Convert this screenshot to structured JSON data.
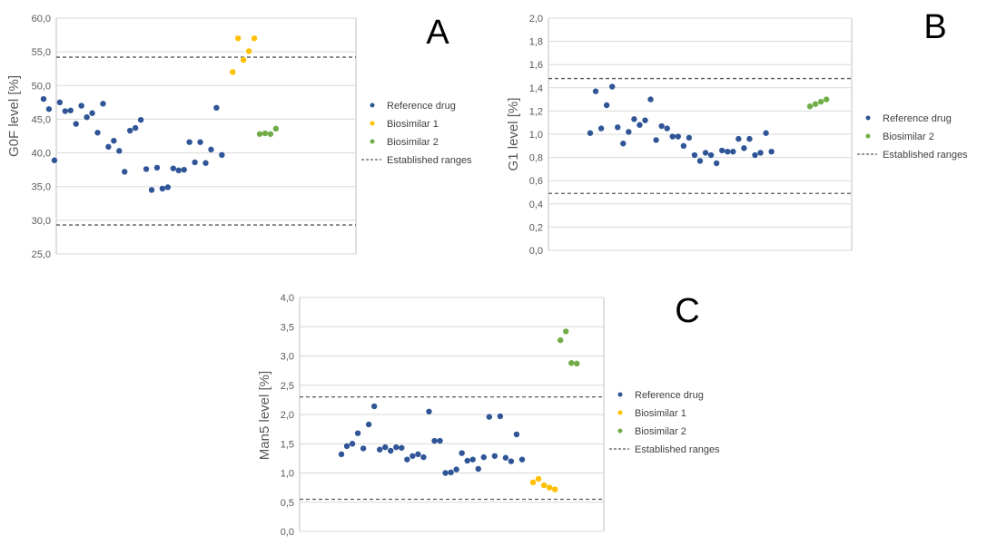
{
  "colors": {
    "reference": "#2F5597",
    "biosimilar1": "#FFC000",
    "biosimilar2": "#70AD47",
    "range": "#595959",
    "grid": "#D9D9D9",
    "axis": "#BFBFBF"
  },
  "chart_data": [
    {
      "panel": "A",
      "type": "scatter",
      "ylabel": "G0F level [%]",
      "ylim": [
        25,
        60
      ],
      "yticks": [
        "25,0",
        "30,0",
        "35,0",
        "40,0",
        "45,0",
        "50,0",
        "55,0",
        "60,0"
      ],
      "grid": true,
      "legend": [
        "Reference drug",
        "Biosimilar 1",
        "Biosimilar 2",
        "Established ranges"
      ],
      "established_range": [
        29.3,
        54.2
      ],
      "series": [
        {
          "name": "Reference drug",
          "x": [
            1,
            2,
            3,
            4,
            5,
            6,
            7,
            8,
            9,
            10,
            11,
            12,
            13,
            14,
            15,
            16,
            17,
            18,
            19,
            20,
            21,
            22,
            23,
            24,
            25,
            26,
            27,
            28,
            29,
            30,
            31,
            32,
            33,
            34,
            35,
            36
          ],
          "values": [
            48.0,
            46.5,
            38.9,
            47.5,
            46.2,
            46.3,
            44.3,
            47.0,
            45.3,
            45.9,
            43.0,
            47.3,
            40.9,
            41.8,
            40.3,
            37.2,
            43.3,
            43.7,
            44.9,
            37.6,
            34.5,
            37.8,
            34.7,
            34.9,
            37.7,
            37.4,
            37.5,
            41.6,
            38.6,
            41.6,
            38.5,
            40.5,
            46.7,
            39.7,
            null,
            null
          ]
        },
        {
          "name": "Biosimilar 1",
          "x": [
            36,
            37,
            38,
            39,
            40
          ],
          "values": [
            52.0,
            57.0,
            53.8,
            55.1,
            57.0
          ]
        },
        {
          "name": "Biosimilar 2",
          "x": [
            41,
            42,
            43,
            44
          ],
          "values": [
            42.8,
            42.9,
            42.8,
            43.6
          ]
        }
      ]
    },
    {
      "panel": "B",
      "type": "scatter",
      "ylabel": "G1 level [%]",
      "ylim": [
        0,
        2
      ],
      "yticks": [
        "0,0",
        "0,2",
        "0,4",
        "0,6",
        "0,8",
        "1,0",
        "1,2",
        "1,4",
        "1,6",
        "1,8",
        "2,0"
      ],
      "grid": true,
      "legend": [
        "Reference drug",
        "Biosimilar 2",
        "Established ranges"
      ],
      "established_range": [
        0.49,
        1.48
      ],
      "series": [
        {
          "name": "Reference drug",
          "x": [
            1,
            2,
            3,
            4,
            5,
            6,
            7,
            8,
            9,
            10,
            11,
            12,
            13,
            14,
            15,
            16,
            17,
            18,
            19,
            20,
            21,
            22,
            23,
            24,
            25,
            26,
            27,
            28,
            29,
            30,
            31,
            32,
            33,
            34,
            35,
            36
          ],
          "values": [
            1.01,
            1.37,
            1.05,
            1.25,
            1.41,
            1.06,
            0.92,
            1.02,
            1.13,
            1.08,
            1.12,
            1.3,
            0.95,
            1.07,
            1.05,
            0.98,
            0.98,
            0.9,
            0.97,
            0.82,
            0.77,
            0.84,
            0.82,
            0.75,
            0.86,
            0.85,
            0.85,
            0.96,
            0.88,
            0.96,
            0.82,
            0.84,
            1.01,
            0.85,
            null,
            null
          ]
        },
        {
          "name": "Biosimilar 2",
          "x": [
            41,
            42,
            43,
            44
          ],
          "values": [
            1.24,
            1.26,
            1.28,
            1.3
          ]
        }
      ]
    },
    {
      "panel": "C",
      "type": "scatter",
      "ylabel": "Man5 level [%]",
      "ylim": [
        0,
        4
      ],
      "yticks": [
        "0,0",
        "0,5",
        "1,0",
        "1,5",
        "2,0",
        "2,5",
        "3,0",
        "3,5",
        "4,0"
      ],
      "grid": true,
      "legend": [
        "Reference drug",
        "Biosimilar 1",
        "Biosimilar 2",
        "Established ranges"
      ],
      "established_range": [
        0.55,
        2.3
      ],
      "series": [
        {
          "name": "Reference drug",
          "x": [
            1,
            2,
            3,
            4,
            5,
            6,
            7,
            8,
            9,
            10,
            11,
            12,
            13,
            14,
            15,
            16,
            17,
            18,
            19,
            20,
            21,
            22,
            23,
            24,
            25,
            26,
            27,
            28,
            29,
            30,
            31,
            32,
            33,
            34,
            35,
            36
          ],
          "values": [
            1.32,
            1.46,
            1.5,
            1.68,
            1.42,
            1.83,
            2.14,
            1.4,
            1.44,
            1.38,
            1.44,
            1.43,
            1.23,
            1.29,
            1.32,
            1.27,
            2.05,
            1.55,
            1.55,
            1.0,
            1.01,
            1.06,
            1.34,
            1.21,
            1.23,
            1.07,
            1.27,
            1.96,
            1.29,
            1.97,
            1.26,
            1.2,
            1.66,
            1.23,
            null,
            null
          ]
        },
        {
          "name": "Biosimilar 1",
          "x": [
            36,
            37,
            38,
            39,
            40
          ],
          "values": [
            0.84,
            0.9,
            0.79,
            0.75,
            0.72
          ]
        },
        {
          "name": "Biosimilar 2",
          "x": [
            41,
            42,
            43,
            44
          ],
          "values": [
            3.27,
            3.42,
            2.88,
            2.87
          ]
        }
      ]
    }
  ]
}
